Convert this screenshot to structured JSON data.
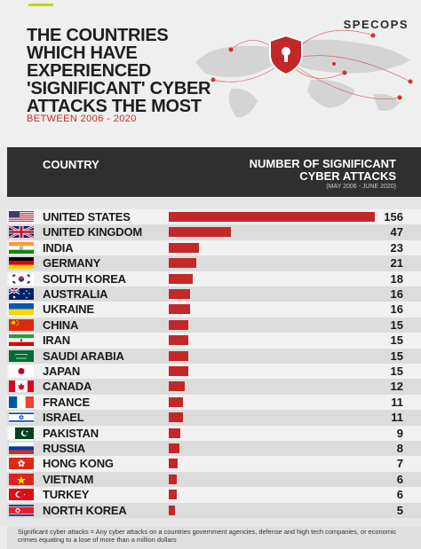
{
  "header": {
    "brand": "SPECOPS",
    "title_lines": [
      "THE COUNTRIES",
      "WHICH HAVE",
      "EXPERIENCED",
      "'SIGNIFICANT' CYBER",
      "ATTACKS THE MOST"
    ],
    "subtitle": "BETWEEN 2006 - 2020"
  },
  "colors": {
    "bar": "#c42727",
    "header_bg": "#2f2f2f",
    "accent": "#c6d400"
  },
  "chart_data": {
    "type": "bar",
    "orientation": "horizontal",
    "title": "THE COUNTRIES WHICH HAVE EXPERIENCED 'SIGNIFICANT' CYBER ATTACKS THE MOST",
    "xlabel": "NUMBER OF SIGNIFICANT CYBER ATTACKS",
    "ylabel": "COUNTRY",
    "period": "(MAY 2006 - JUNE 2020)",
    "xlim": [
      0,
      156
    ],
    "categories": [
      "UNITED STATES",
      "UNITED KINGDOM",
      "INDIA",
      "GERMANY",
      "SOUTH KOREA",
      "AUSTRALIA",
      "UKRAINE",
      "CHINA",
      "IRAN",
      "SAUDI ARABIA",
      "JAPAN",
      "CANADA",
      "FRANCE",
      "ISRAEL",
      "PAKISTAN",
      "RUSSIA",
      "HONG KONG",
      "VIETNAM",
      "TURKEY",
      "NORTH KOREA"
    ],
    "values": [
      156,
      47,
      23,
      21,
      18,
      16,
      16,
      15,
      15,
      15,
      15,
      12,
      11,
      11,
      9,
      8,
      7,
      6,
      6,
      5
    ],
    "flags": [
      "us-flag-icon",
      "uk-flag-icon",
      "india-flag-icon",
      "germany-flag-icon",
      "south-korea-flag-icon",
      "australia-flag-icon",
      "ukraine-flag-icon",
      "china-flag-icon",
      "iran-flag-icon",
      "saudi-arabia-flag-icon",
      "japan-flag-icon",
      "canada-flag-icon",
      "france-flag-icon",
      "israel-flag-icon",
      "pakistan-flag-icon",
      "russia-flag-icon",
      "hong-kong-flag-icon",
      "vietnam-flag-icon",
      "turkey-flag-icon",
      "north-korea-flag-icon"
    ]
  },
  "footer": {
    "note": "Significant cyber attacks = Any cyber attacks on a countries government agencies, defense and high tech companies, or economic crimes equating to a lose of more than a million dollars"
  }
}
